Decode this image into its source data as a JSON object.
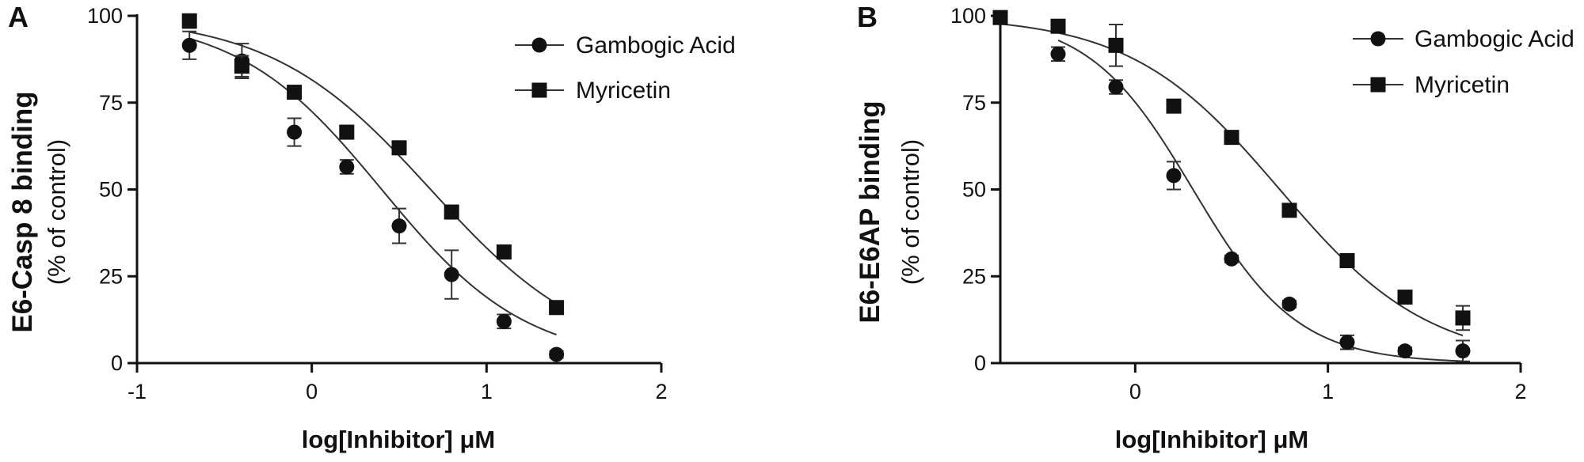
{
  "chart_data": [
    {
      "panel_label": "A",
      "type": "scatter",
      "ylabel": "E6-Casp 8 binding",
      "ylabel_sub": "(% of control)",
      "xlabel": "log[Inhibitor] μM",
      "xlim": [
        -1,
        2
      ],
      "ylim": [
        0,
        100
      ],
      "x_ticks": [
        -1,
        0,
        1,
        2
      ],
      "y_ticks": [
        0,
        25,
        50,
        75,
        100
      ],
      "legend_position": "top-right",
      "series": [
        {
          "name": "Gambogic Acid",
          "marker": "circle",
          "x": [
            -0.7,
            -0.4,
            -0.1,
            0.2,
            0.5,
            0.8,
            1.1,
            1.4
          ],
          "y": [
            91.5,
            87,
            66.5,
            56.5,
            39.5,
            25.5,
            12,
            2.5
          ],
          "err": [
            4,
            5,
            4,
            2,
            5,
            7,
            2,
            1
          ],
          "fit": {
            "top": 100,
            "bottom": 0,
            "logIC50": 0.4,
            "hill": 1.05
          }
        },
        {
          "name": "Myricetin",
          "marker": "square",
          "x": [
            -0.7,
            -0.4,
            -0.1,
            0.2,
            0.5,
            0.8,
            1.1,
            1.4
          ],
          "y": [
            98.5,
            85.5,
            78,
            66.5,
            62,
            43.5,
            32,
            16
          ],
          "err": [
            2,
            3,
            1,
            1,
            1,
            1,
            1,
            1
          ],
          "fit": {
            "top": 100,
            "bottom": 0,
            "logIC50": 0.68,
            "hill": 0.95
          }
        }
      ]
    },
    {
      "panel_label": "B",
      "type": "scatter",
      "ylabel": "E6-E6AP binding",
      "ylabel_sub": "(% of control)",
      "xlabel": "log[Inhibitor] μM",
      "xlim": [
        -0.7,
        2
      ],
      "ylim": [
        0,
        100
      ],
      "x_ticks": [
        0,
        1,
        2
      ],
      "y_ticks": [
        0,
        25,
        50,
        75,
        100
      ],
      "legend_position": "top-right",
      "series": [
        {
          "name": "Gambogic Acid",
          "marker": "circle",
          "x": [
            -0.4,
            -0.1,
            0.2,
            0.5,
            0.8,
            1.1,
            1.4,
            1.7
          ],
          "y": [
            89,
            79.5,
            54,
            30,
            17,
            6,
            3.5,
            3.5
          ],
          "err": [
            2,
            2,
            4,
            1,
            1,
            2,
            1,
            3
          ],
          "fit": {
            "top": 100,
            "bottom": 0,
            "logIC50": 0.3,
            "hill": 1.6
          }
        },
        {
          "name": "Myricetin",
          "marker": "square",
          "x": [
            -0.7,
            -0.4,
            -0.1,
            0.2,
            0.5,
            0.8,
            1.1,
            1.4,
            1.7
          ],
          "y": [
            99.5,
            97,
            91.5,
            74,
            65,
            44,
            29.5,
            19,
            13
          ],
          "err": [
            1,
            1,
            6,
            1,
            1,
            1,
            1,
            1,
            3.5
          ],
          "fit": {
            "top": 100,
            "bottom": 0,
            "logIC50": 0.75,
            "hill": 1.12
          }
        }
      ]
    }
  ]
}
